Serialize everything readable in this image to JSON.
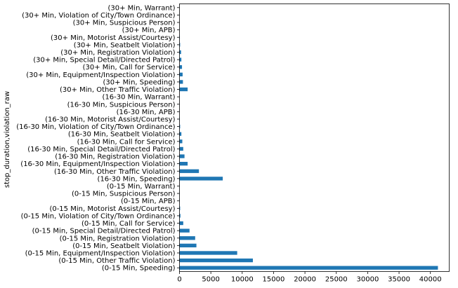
{
  "chart_data": {
    "type": "bar",
    "orientation": "horizontal",
    "ylabel": "stop_duration,violation_raw",
    "xlabel": "",
    "xlim": [
      0,
      43000
    ],
    "xticks": [
      0,
      5000,
      10000,
      15000,
      20000,
      25000,
      30000,
      35000,
      40000
    ],
    "xtick_labels": [
      "0",
      "5000",
      "10000",
      "15000",
      "20000",
      "25000",
      "30000",
      "35000",
      "40000"
    ],
    "bar_color": "#1f77b4",
    "grid": false,
    "categories": [
      "(0-15 Min, Speeding)",
      "(0-15 Min, Other Traffic Violation)",
      "(0-15 Min, Equipment/Inspection Violation)",
      "(0-15 Min, Seatbelt Violation)",
      "(0-15 Min, Registration Violation)",
      "(0-15 Min, Special Detail/Directed Patrol)",
      "(0-15 Min, Call for Service)",
      "(0-15 Min, Violation of City/Town Ordinance)",
      "(0-15 Min, Motorist Assist/Courtesy)",
      "(0-15 Min, APB)",
      "(0-15 Min, Suspicious Person)",
      "(0-15 Min, Warrant)",
      "(16-30 Min, Speeding)",
      "(16-30 Min, Other Traffic Violation)",
      "(16-30 Min, Equipment/Inspection Violation)",
      "(16-30 Min, Registration Violation)",
      "(16-30 Min, Special Detail/Directed Patrol)",
      "(16-30 Min, Call for Service)",
      "(16-30 Min, Seatbelt Violation)",
      "(16-30 Min, Violation of City/Town Ordinance)",
      "(16-30 Min, Motorist Assist/Courtesy)",
      "(16-30 Min, APB)",
      "(16-30 Min, Suspicious Person)",
      "(16-30 Min, Warrant)",
      "(30+ Min, Other Traffic Violation)",
      "(30+ Min, Speeding)",
      "(30+ Min, Equipment/Inspection Violation)",
      "(30+ Min, Call for Service)",
      "(30+ Min, Special Detail/Directed Patrol)",
      "(30+ Min, Registration Violation)",
      "(30+ Min, Seatbelt Violation)",
      "(30+ Min, Motorist Assist/Courtesy)",
      "(30+ Min, APB)",
      "(30+ Min, Suspicious Person)",
      "(30+ Min, Violation of City/Town Ordinance)",
      "(30+ Min, Warrant)"
    ],
    "values": [
      41200,
      11700,
      9200,
      2700,
      2500,
      1600,
      600,
      150,
      100,
      40,
      30,
      20,
      6900,
      3100,
      1300,
      800,
      600,
      450,
      300,
      100,
      60,
      20,
      15,
      10,
      1300,
      550,
      500,
      400,
      300,
      250,
      100,
      60,
      20,
      15,
      10,
      5
    ]
  }
}
